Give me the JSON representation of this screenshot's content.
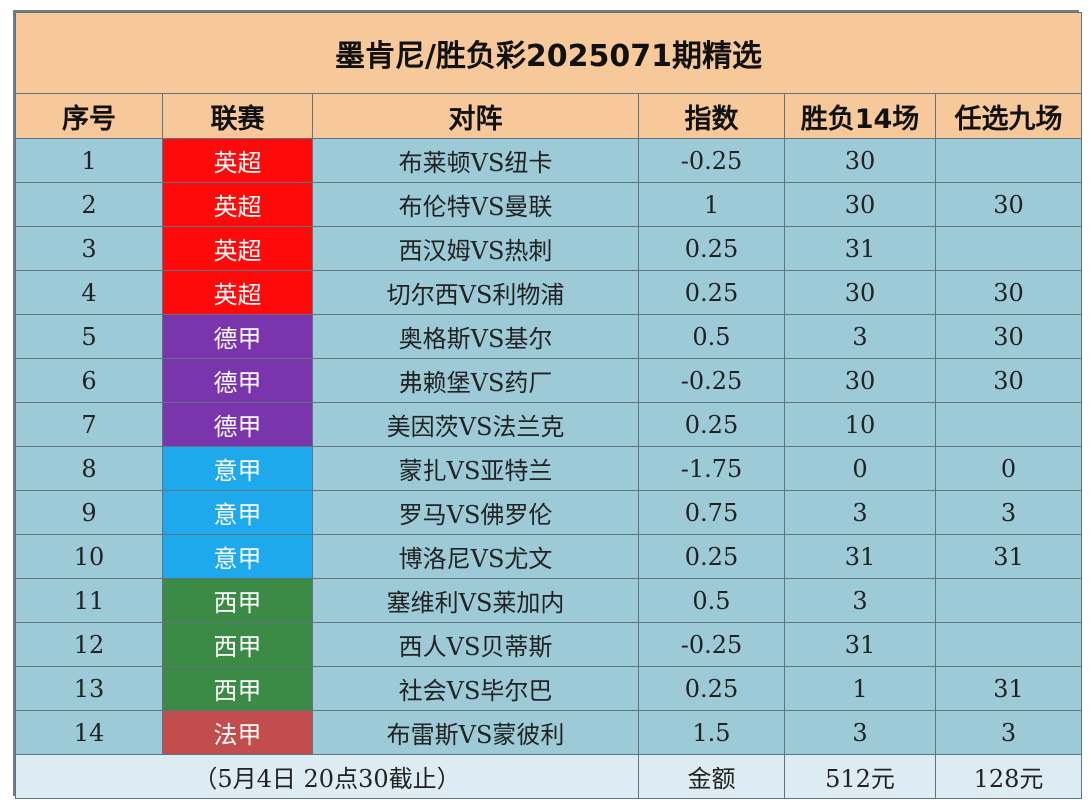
{
  "title": "墨肯尼/胜负彩2025071期精选",
  "headers": {
    "seq": "序号",
    "league": "联赛",
    "match": "对阵",
    "index": "指数",
    "sf14": "胜负14场",
    "r9": "任选九场"
  },
  "league_colors": {
    "英超": "#ff0a0a",
    "德甲": "#7a35ad",
    "意甲": "#1ea9ec",
    "西甲": "#3b8a45",
    "法甲": "#c14e4c"
  },
  "rows": [
    {
      "seq": "1",
      "league": "英超",
      "match": "布莱顿VS纽卡",
      "index": "-0.25",
      "sf14": "30",
      "r9": ""
    },
    {
      "seq": "2",
      "league": "英超",
      "match": "布伦特VS曼联",
      "index": "1",
      "sf14": "30",
      "r9": "30"
    },
    {
      "seq": "3",
      "league": "英超",
      "match": "西汉姆VS热刺",
      "index": "0.25",
      "sf14": "31",
      "r9": ""
    },
    {
      "seq": "4",
      "league": "英超",
      "match": "切尔西VS利物浦",
      "index": "0.25",
      "sf14": "30",
      "r9": "30"
    },
    {
      "seq": "5",
      "league": "德甲",
      "match": "奥格斯VS基尔",
      "index": "0.5",
      "sf14": "3",
      "r9": "30"
    },
    {
      "seq": "6",
      "league": "德甲",
      "match": "弗赖堡VS药厂",
      "index": "-0.25",
      "sf14": "30",
      "r9": "30"
    },
    {
      "seq": "7",
      "league": "德甲",
      "match": "美因茨VS法兰克",
      "index": "0.25",
      "sf14": "10",
      "r9": ""
    },
    {
      "seq": "8",
      "league": "意甲",
      "match": "蒙扎VS亚特兰",
      "index": "-1.75",
      "sf14": "0",
      "r9": "0"
    },
    {
      "seq": "9",
      "league": "意甲",
      "match": "罗马VS佛罗伦",
      "index": "0.75",
      "sf14": "3",
      "r9": "3"
    },
    {
      "seq": "10",
      "league": "意甲",
      "match": "博洛尼VS尤文",
      "index": "0.25",
      "sf14": "31",
      "r9": "31"
    },
    {
      "seq": "11",
      "league": "西甲",
      "match": "塞维利VS莱加内",
      "index": "0.5",
      "sf14": "3",
      "r9": ""
    },
    {
      "seq": "12",
      "league": "西甲",
      "match": "西人VS贝蒂斯",
      "index": "-0.25",
      "sf14": "31",
      "r9": ""
    },
    {
      "seq": "13",
      "league": "西甲",
      "match": "社会VS毕尔巴",
      "index": "0.25",
      "sf14": "1",
      "r9": "31"
    },
    {
      "seq": "14",
      "league": "法甲",
      "match": "布雷斯VS蒙彼利",
      "index": "1.5",
      "sf14": "3",
      "r9": "3"
    }
  ],
  "footer": {
    "deadline": "（5月4日 20点30截止）",
    "amount_label": "金额",
    "sf14_amount": "512元",
    "r9_amount": "128元"
  }
}
